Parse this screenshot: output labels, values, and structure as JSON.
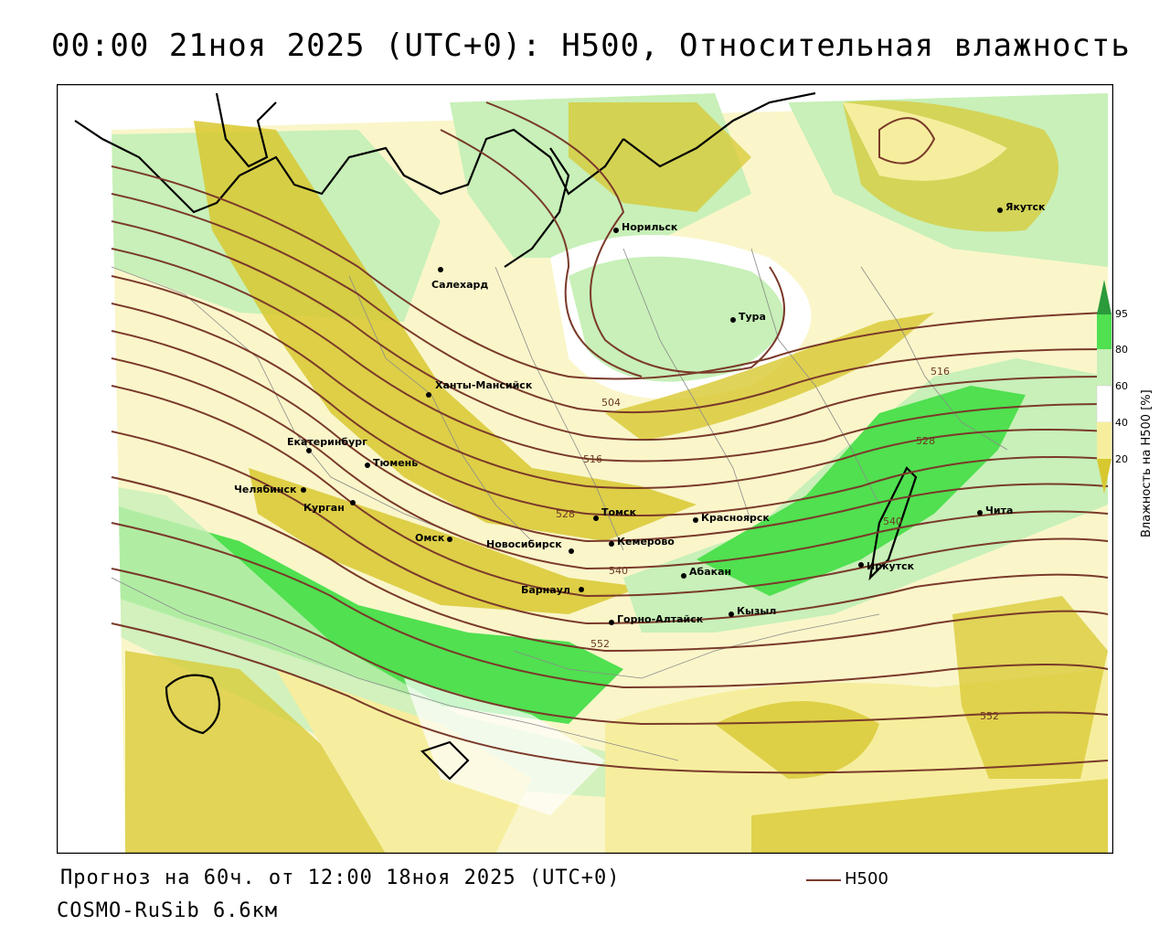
{
  "title": "00:00 21ноя 2025 (UTC+0): H500, Относительная влажность",
  "footer": {
    "forecast": "Прогноз на 60ч. от 12:00 18ноя 2025 (UTC+0)",
    "model": "COSMO-RuSib 6.6км"
  },
  "legend": {
    "line_label": "H500",
    "line_color": "#7a3a2a"
  },
  "scale": {
    "title": "Влажность на H500 [%]",
    "ticks": [
      "95",
      "80",
      "60",
      "40",
      "20"
    ],
    "colors": {
      "very_low": "#d8c830",
      "low": "#f6ee9e",
      "mid": "#ffffff",
      "moist": "#c8f0b8",
      "wet": "#50e050",
      "saturated": "#2a9a3a"
    }
  },
  "cities": [
    {
      "name": "Норильск"
    },
    {
      "name": "Якутск"
    },
    {
      "name": "Салехард"
    },
    {
      "name": "Тура"
    },
    {
      "name": "Ханты-Мансийск"
    },
    {
      "name": "Екатеринбург"
    },
    {
      "name": "Тюмень"
    },
    {
      "name": "Челябинск"
    },
    {
      "name": "Курган"
    },
    {
      "name": "Омск"
    },
    {
      "name": "Новосибирск"
    },
    {
      "name": "Томск"
    },
    {
      "name": "Кемерово"
    },
    {
      "name": "Красноярск"
    },
    {
      "name": "Абакан"
    },
    {
      "name": "Барнаул"
    },
    {
      "name": "Горно-Алтайск"
    },
    {
      "name": "Кызыл"
    },
    {
      "name": "Иркутск"
    },
    {
      "name": "Чита"
    }
  ],
  "isolines": [
    {
      "label": "504"
    },
    {
      "label": "516"
    },
    {
      "label": "516"
    },
    {
      "label": "528"
    },
    {
      "label": "528"
    },
    {
      "label": "540"
    },
    {
      "label": "540"
    },
    {
      "label": "552"
    },
    {
      "label": "552"
    }
  ]
}
